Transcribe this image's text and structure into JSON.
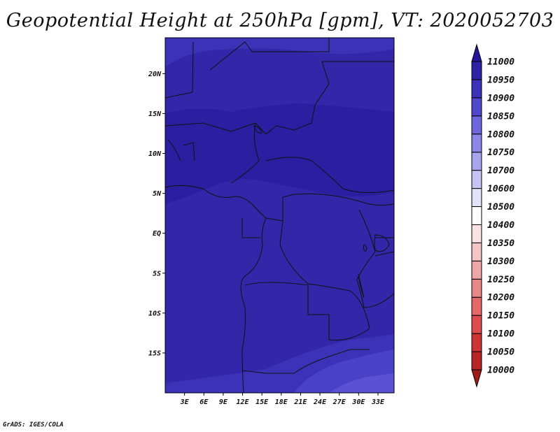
{
  "title": "Geopotential Height at 250hPa [gpm], VT: 2020052703",
  "credit": "GrADS: IGES/COLA",
  "map": {
    "lon_range": [
      0,
      35.5
    ],
    "lat_range": [
      -20,
      24.5
    ],
    "lat_ticks": [
      {
        "value": 20,
        "label": "20N"
      },
      {
        "value": 15,
        "label": "15N"
      },
      {
        "value": 10,
        "label": "10N"
      },
      {
        "value": 5,
        "label": "5N"
      },
      {
        "value": 0,
        "label": "EQ"
      },
      {
        "value": -5,
        "label": "5S"
      },
      {
        "value": -10,
        "label": "10S"
      },
      {
        "value": -15,
        "label": "15S"
      }
    ],
    "lon_ticks": [
      {
        "value": 3,
        "label": "3E"
      },
      {
        "value": 6,
        "label": "6E"
      },
      {
        "value": 9,
        "label": "9E"
      },
      {
        "value": 12,
        "label": "12E"
      },
      {
        "value": 15,
        "label": "15E"
      },
      {
        "value": 18,
        "label": "18E"
      },
      {
        "value": 21,
        "label": "21E"
      },
      {
        "value": 24,
        "label": "24E"
      },
      {
        "value": 27,
        "label": "27E"
      },
      {
        "value": 30,
        "label": "30E"
      },
      {
        "value": 33,
        "label": "33E"
      }
    ]
  },
  "colorbar": {
    "levels": [
      "10000",
      "10050",
      "10100",
      "10150",
      "10200",
      "10250",
      "10300",
      "10350",
      "10400",
      "10500",
      "10600",
      "10700",
      "10750",
      "10800",
      "10850",
      "10900",
      "10950",
      "11000"
    ],
    "colors": [
      "#a01a1a",
      "#b82424",
      "#cf3434",
      "#dc4c4c",
      "#e36868",
      "#e88888",
      "#eea6a6",
      "#f5c4c4",
      "#fbe2e2",
      "#ffffff",
      "#e2e2fa",
      "#c6c4f4",
      "#a8a4ee",
      "#8c86e6",
      "#6e66dc",
      "#5048cc",
      "#3c32b8",
      "#2e22a4",
      "#24169a"
    ]
  }
}
